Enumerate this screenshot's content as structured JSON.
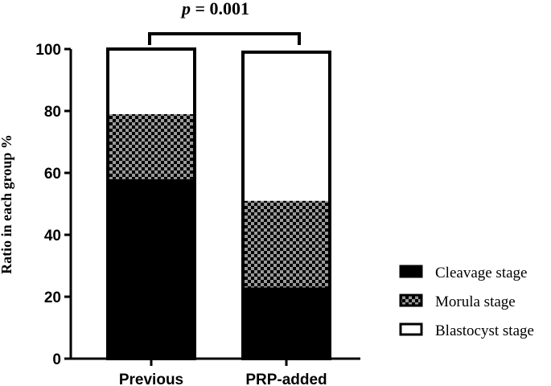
{
  "chart_data": {
    "type": "bar",
    "stacked": true,
    "categories": [
      "Previous",
      "PRP-added"
    ],
    "series": [
      {
        "name": "Cleavage stage",
        "values": [
          58,
          23
        ],
        "pattern": "solid"
      },
      {
        "name": "Morula stage",
        "values": [
          21,
          28
        ],
        "pattern": "checker"
      },
      {
        "name": "Blastocyst stage",
        "values": [
          21,
          48
        ],
        "pattern": "open"
      }
    ],
    "title": "",
    "xlabel": "",
    "ylabel": "Ratio in each group %",
    "ylim": [
      0,
      100
    ],
    "yticks": [
      "0",
      "20",
      "40",
      "60",
      "80",
      "100"
    ],
    "annotation": {
      "prefix": "p",
      "text": " = 0.001"
    },
    "legend_position": "right",
    "grid": false
  }
}
